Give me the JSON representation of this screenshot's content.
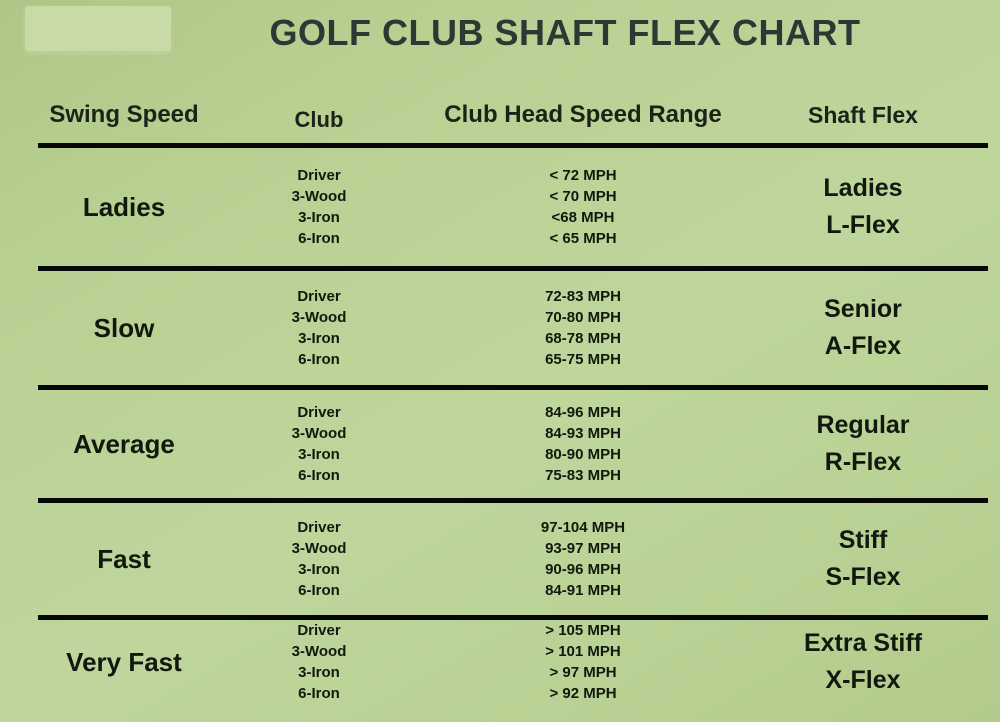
{
  "title": "GOLF CLUB SHAFT FLEX CHART",
  "colors": {
    "background_green": "#bcd498",
    "background_gradient_dark": "#aec687",
    "logo_patch_green": "#c8daa5",
    "title_text": "#2b3833",
    "body_text": "#12180e",
    "rule_black": "#070707"
  },
  "table": {
    "headers": [
      "Swing Speed",
      "Club",
      "Club Head Speed Range",
      "Shaft Flex"
    ],
    "rows": [
      {
        "swing_speed": "Ladies",
        "clubs": [
          "Driver",
          "3-Wood",
          "3-Iron",
          "6-Iron"
        ],
        "speeds": [
          "< 72 MPH",
          "< 70 MPH",
          "<68 MPH",
          "< 65 MPH"
        ],
        "flex": [
          "Ladies",
          "L-Flex"
        ]
      },
      {
        "swing_speed": "Slow",
        "clubs": [
          "Driver",
          "3-Wood",
          "3-Iron",
          "6-Iron"
        ],
        "speeds": [
          "72-83 MPH",
          "70-80 MPH",
          "68-78 MPH",
          "65-75 MPH"
        ],
        "flex": [
          "Senior",
          "A-Flex"
        ]
      },
      {
        "swing_speed": "Average",
        "clubs": [
          "Driver",
          "3-Wood",
          "3-Iron",
          "6-Iron"
        ],
        "speeds": [
          "84-96 MPH",
          "84-93 MPH",
          "80-90 MPH",
          "75-83 MPH"
        ],
        "flex": [
          "Regular",
          "R-Flex"
        ]
      },
      {
        "swing_speed": "Fast",
        "clubs": [
          "Driver",
          "3-Wood",
          "3-Iron",
          "6-Iron"
        ],
        "speeds": [
          "97-104 MPH",
          "93-97 MPH",
          "90-96 MPH",
          "84-91 MPH"
        ],
        "flex": [
          "Stiff",
          "S-Flex"
        ]
      },
      {
        "swing_speed": "Very Fast",
        "clubs": [
          "Driver",
          "3-Wood",
          "3-Iron",
          "6-Iron"
        ],
        "speeds": [
          "> 105 MPH",
          "> 101 MPH",
          "> 97 MPH",
          "> 92 MPH"
        ],
        "flex": [
          "Extra Stiff",
          "X-Flex"
        ]
      }
    ]
  },
  "chart_data": {
    "type": "table",
    "title": "GOLF CLUB SHAFT FLEX CHART",
    "columns": [
      "Swing Speed",
      "Club",
      "Club Head Speed Range",
      "Shaft Flex"
    ],
    "rows": [
      [
        "Ladies",
        "Driver",
        "< 72 MPH",
        "Ladies L-Flex"
      ],
      [
        "Ladies",
        "3-Wood",
        "< 70 MPH",
        "Ladies L-Flex"
      ],
      [
        "Ladies",
        "3-Iron",
        "<68 MPH",
        "Ladies L-Flex"
      ],
      [
        "Ladies",
        "6-Iron",
        "< 65 MPH",
        "Ladies L-Flex"
      ],
      [
        "Slow",
        "Driver",
        "72-83 MPH",
        "Senior A-Flex"
      ],
      [
        "Slow",
        "3-Wood",
        "70-80 MPH",
        "Senior A-Flex"
      ],
      [
        "Slow",
        "3-Iron",
        "68-78 MPH",
        "Senior A-Flex"
      ],
      [
        "Slow",
        "6-Iron",
        "65-75 MPH",
        "Senior A-Flex"
      ],
      [
        "Average",
        "Driver",
        "84-96 MPH",
        "Regular R-Flex"
      ],
      [
        "Average",
        "3-Wood",
        "84-93 MPH",
        "Regular R-Flex"
      ],
      [
        "Average",
        "3-Iron",
        "80-90 MPH",
        "Regular R-Flex"
      ],
      [
        "Average",
        "6-Iron",
        "75-83 MPH",
        "Regular R-Flex"
      ],
      [
        "Fast",
        "Driver",
        "97-104 MPH",
        "Stiff S-Flex"
      ],
      [
        "Fast",
        "3-Wood",
        "93-97 MPH",
        "Stiff S-Flex"
      ],
      [
        "Fast",
        "3-Iron",
        "90-96 MPH",
        "Stiff S-Flex"
      ],
      [
        "Fast",
        "6-Iron",
        "84-91 MPH",
        "Stiff S-Flex"
      ],
      [
        "Very Fast",
        "Driver",
        "> 105 MPH",
        "Extra Stiff X-Flex"
      ],
      [
        "Very Fast",
        "3-Wood",
        "> 101 MPH",
        "Extra Stiff X-Flex"
      ],
      [
        "Very Fast",
        "3-Iron",
        "> 97 MPH",
        "Extra Stiff X-Flex"
      ],
      [
        "Very Fast",
        "6-Iron",
        "> 92 MPH",
        "Extra Stiff X-Flex"
      ]
    ],
    "layout": "table with 4 columns; 5 banded swing-speed groups separated by thick black horizontal rules; no vertical rules; no bottom rule"
  }
}
